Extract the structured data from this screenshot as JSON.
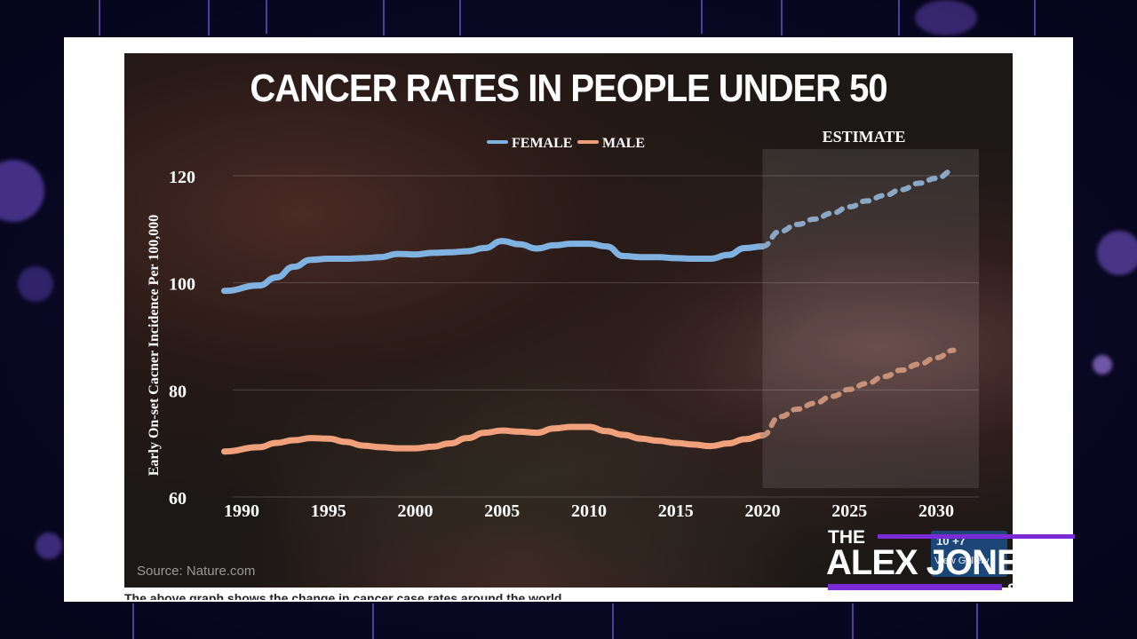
{
  "chart_data": {
    "type": "line",
    "title": "CANCER RATES IN PEOPLE UNDER 50",
    "ylabel": "Early On-set Cacner Incidence Per 100,000",
    "xlabel": "",
    "ylim": [
      60,
      120
    ],
    "y_ticks": [
      "120",
      "100",
      "80",
      "60"
    ],
    "x_ticks": [
      "1990",
      "1995",
      "2000",
      "2005",
      "2010",
      "2015",
      "2020",
      "2025",
      "2030"
    ],
    "legend_position": "top-center",
    "estimate_label": "ESTIMATE",
    "estimate_start": 2020,
    "grid": true,
    "series": [
      {
        "name": "FEMALE",
        "color": "#7fb2e0",
        "x": [
          1989,
          1991,
          1992,
          1993,
          1994,
          1995,
          1996,
          1997,
          1998,
          1999,
          2000,
          2001,
          2002,
          2003,
          2004,
          2005,
          2006,
          2007,
          2008,
          2009,
          2010,
          2011,
          2012,
          2013,
          2014,
          2015,
          2016,
          2017,
          2018,
          2019,
          2020
        ],
        "values": [
          98.5,
          99.5,
          101,
          103,
          104.3,
          104.5,
          104.5,
          104.6,
          104.8,
          105.4,
          105.3,
          105.6,
          105.7,
          105.9,
          106.5,
          107.8,
          107.2,
          106.4,
          107.0,
          107.3,
          107.3,
          106.8,
          105.0,
          104.8,
          104.8,
          104.6,
          104.5,
          104.5,
          105.2,
          106.5,
          106.8
        ]
      },
      {
        "name": "MALE",
        "color": "#f0a07a",
        "x": [
          1989,
          1991,
          1992,
          1993,
          1994,
          1995,
          1996,
          1997,
          1998,
          1999,
          2000,
          2001,
          2002,
          2003,
          2004,
          2005,
          2006,
          2007,
          2008,
          2009,
          2010,
          2011,
          2012,
          2013,
          2014,
          2015,
          2016,
          2017,
          2018,
          2019,
          2020
        ],
        "values": [
          68.5,
          69.3,
          70.1,
          70.6,
          71.0,
          70.9,
          70.3,
          69.6,
          69.3,
          69.1,
          69.1,
          69.4,
          70.0,
          71.0,
          72.0,
          72.4,
          72.2,
          72.0,
          72.8,
          73.1,
          73.1,
          72.3,
          71.6,
          70.9,
          70.5,
          70.1,
          69.8,
          69.5,
          70.0,
          70.8,
          71.5
        ]
      }
    ],
    "estimate_series": [
      {
        "name": "FEMALE",
        "color": "#8aa8c6",
        "x": [
          2020,
          2021,
          2022,
          2023,
          2024,
          2025,
          2026,
          2027,
          2028,
          2029,
          2030,
          2031
        ],
        "values": [
          106.8,
          109.6,
          110.9,
          111.9,
          113.0,
          114.2,
          115.3,
          116.3,
          117.4,
          118.6,
          119.5,
          121.0
        ]
      },
      {
        "name": "MALE",
        "color": "#c79078",
        "x": [
          2020,
          2021,
          2022,
          2023,
          2024,
          2025,
          2026,
          2027,
          2028,
          2029,
          2030,
          2031
        ],
        "values": [
          71.5,
          75.0,
          76.4,
          77.5,
          78.8,
          80.1,
          81.2,
          82.5,
          83.7,
          84.8,
          86.0,
          87.4
        ]
      }
    ]
  },
  "source": "Source: Nature.com",
  "caption": "The above graph shows the change in cancer case rates around the world",
  "logo": {
    "the": "THE",
    "main": "ALEX JONES",
    "show": "SHOW",
    "viewer_count": "10 +7",
    "viewer_label": "View Gallery"
  }
}
